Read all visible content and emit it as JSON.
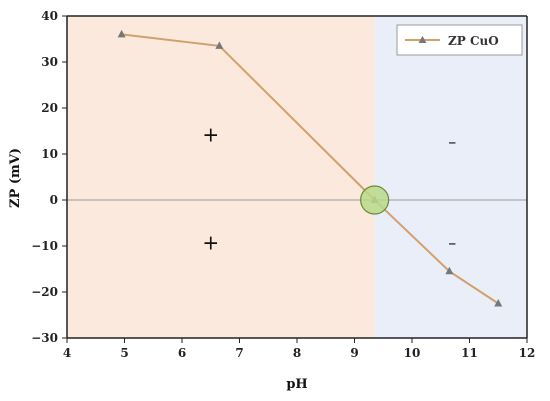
{
  "chart_data": {
    "type": "line",
    "xlabel": "pH",
    "ylabel": "ZP (mV)",
    "xlim": [
      4,
      12
    ],
    "ylim": [
      -30,
      40
    ],
    "xticks": [
      4,
      5,
      6,
      7,
      8,
      9,
      10,
      11,
      12
    ],
    "yticks": [
      40,
      30,
      20,
      10,
      0,
      -10,
      -20,
      -30
    ],
    "x_tick_labels": [
      "4",
      "5",
      "6",
      "7",
      "8",
      "9",
      "10",
      "11",
      "12"
    ],
    "y_tick_labels": [
      "40",
      "30",
      "20",
      "10",
      "0",
      "−10",
      "−20",
      "−30"
    ],
    "grid": false,
    "legend_position": "top-right",
    "series": [
      {
        "name": "ZP CuO",
        "marker": "triangle",
        "color": "#d4a06a",
        "x": [
          4.95,
          6.65,
          9.35,
          10.65,
          11.5
        ],
        "y": [
          36,
          33.5,
          0,
          -15.5,
          -22.5
        ]
      }
    ],
    "regions": [
      {
        "from_x": 4,
        "to_x": 9.35,
        "color": "#fbe9de"
      },
      {
        "from_x": 9.35,
        "to_x": 12,
        "color": "#e9eef8"
      }
    ],
    "reference_line": {
      "y": 0,
      "color": "#999999"
    },
    "isoelectric_point": {
      "x": 9.35,
      "y": 0,
      "fill": "#b8d98a",
      "stroke": "#6a8a3a"
    },
    "annotations": [
      {
        "text": "+",
        "x": 6.5,
        "y": 14
      },
      {
        "text": "+",
        "x": 6.5,
        "y": -9.5
      },
      {
        "text": "–",
        "x": 10.7,
        "y": 12.5
      },
      {
        "text": "–",
        "x": 10.7,
        "y": -9.5
      }
    ]
  },
  "colors": {
    "axis": "#222222",
    "line": "#d4a06a",
    "marker": "#777777"
  }
}
